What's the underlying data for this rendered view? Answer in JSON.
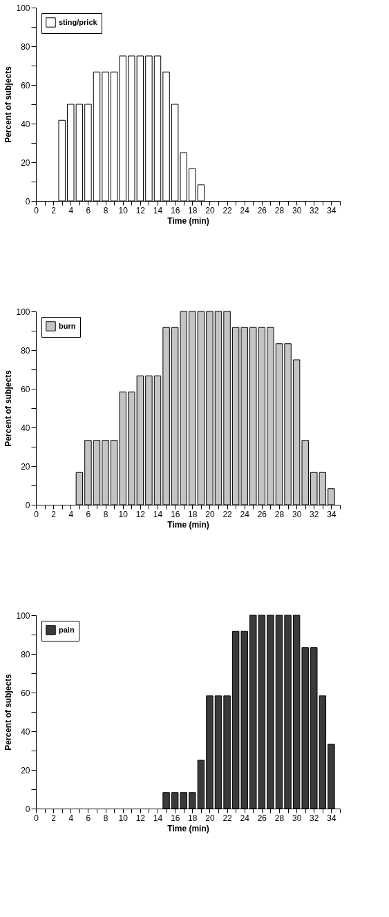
{
  "chart_data": [
    {
      "type": "bar",
      "xlabel": "Time (min)",
      "ylabel": "Percent of subjects",
      "legend": "top left",
      "grid": false,
      "xlim": [
        0,
        35
      ],
      "ylim": [
        0,
        100
      ],
      "xticks": [
        0,
        {
          "value": 1,
          "label": null
        },
        2,
        {
          "value": 3,
          "label": null
        },
        4,
        {
          "value": 5,
          "label": null
        },
        6,
        {
          "value": 7,
          "label": null
        },
        8,
        {
          "value": 9,
          "label": null
        },
        10,
        {
          "value": 11,
          "label": null
        },
        12,
        {
          "value": 13,
          "label": null
        },
        14,
        {
          "value": 15,
          "label": null
        },
        16,
        {
          "value": 17,
          "label": null
        },
        18,
        {
          "value": 19,
          "label": null
        },
        20,
        {
          "value": 21,
          "label": null
        },
        22,
        {
          "value": 23,
          "label": null
        },
        24,
        {
          "value": 25,
          "label": null
        },
        26,
        {
          "value": 27,
          "label": null
        },
        28,
        {
          "value": 29,
          "label": null
        },
        30,
        {
          "value": 31,
          "label": null
        },
        32,
        {
          "value": 33,
          "label": null
        },
        34,
        {
          "value": 35,
          "label": null
        }
      ],
      "yticks": [
        0,
        {
          "value": 10,
          "label": null
        },
        20,
        {
          "value": 30,
          "label": null
        },
        40,
        {
          "value": 50,
          "label": null
        },
        60,
        {
          "value": 70,
          "label": null
        },
        80,
        {
          "value": 90,
          "label": null
        },
        100
      ],
      "x": [
        3,
        4,
        5,
        6,
        7,
        8,
        9,
        10,
        11,
        12,
        13,
        14,
        15,
        16,
        17,
        18,
        19
      ],
      "series": [
        {
          "name": "sting/prick",
          "color": "#ffffff",
          "values": [
            41.7,
            50,
            50,
            50,
            66.7,
            66.7,
            66.7,
            75,
            75,
            75,
            75,
            75,
            66.7,
            50,
            25,
            16.7,
            8.3
          ]
        }
      ]
    },
    {
      "type": "bar",
      "xlabel": "Time (min)",
      "ylabel": "Percent of subjects",
      "legend": "top left",
      "grid": false,
      "xlim": [
        0,
        35
      ],
      "ylim": [
        0,
        100
      ],
      "xticks": [
        0,
        {
          "value": 1,
          "label": null
        },
        2,
        {
          "value": 3,
          "label": null
        },
        4,
        {
          "value": 5,
          "label": null
        },
        6,
        {
          "value": 7,
          "label": null
        },
        8,
        {
          "value": 9,
          "label": null
        },
        10,
        {
          "value": 11,
          "label": null
        },
        12,
        {
          "value": 13,
          "label": null
        },
        14,
        {
          "value": 15,
          "label": null
        },
        16,
        {
          "value": 17,
          "label": null
        },
        18,
        {
          "value": 19,
          "label": null
        },
        20,
        {
          "value": 21,
          "label": null
        },
        22,
        {
          "value": 23,
          "label": null
        },
        24,
        {
          "value": 25,
          "label": null
        },
        26,
        {
          "value": 27,
          "label": null
        },
        28,
        {
          "value": 29,
          "label": null
        },
        30,
        {
          "value": 31,
          "label": null
        },
        32,
        {
          "value": 33,
          "label": null
        },
        34,
        {
          "value": 35,
          "label": null
        }
      ],
      "yticks": [
        0,
        {
          "value": 10,
          "label": null
        },
        20,
        {
          "value": 30,
          "label": null
        },
        40,
        {
          "value": 50,
          "label": null
        },
        60,
        {
          "value": 70,
          "label": null
        },
        80,
        {
          "value": 90,
          "label": null
        },
        100
      ],
      "x": [
        5,
        6,
        7,
        8,
        9,
        10,
        11,
        12,
        13,
        14,
        15,
        16,
        17,
        18,
        19,
        20,
        21,
        22,
        23,
        24,
        25,
        26,
        27,
        28,
        29,
        30,
        31,
        32,
        33,
        34
      ],
      "series": [
        {
          "name": "burn",
          "color": "#c4c4c4",
          "values": [
            16.7,
            33.3,
            33.3,
            33.3,
            33.3,
            58.3,
            58.3,
            66.7,
            66.7,
            66.7,
            91.7,
            91.7,
            100,
            100,
            100,
            100,
            100,
            100,
            91.7,
            91.7,
            91.7,
            91.7,
            91.7,
            83.3,
            83.3,
            75,
            33.3,
            16.7,
            16.7,
            8.3
          ]
        }
      ]
    },
    {
      "type": "bar",
      "xlabel": "Time (min)",
      "ylabel": "Percent of subjects",
      "legend": "top left",
      "grid": false,
      "xlim": [
        0,
        35
      ],
      "ylim": [
        0,
        100
      ],
      "xticks": [
        0,
        {
          "value": 1,
          "label": null
        },
        2,
        {
          "value": 3,
          "label": null
        },
        4,
        {
          "value": 5,
          "label": null
        },
        6,
        {
          "value": 7,
          "label": null
        },
        8,
        {
          "value": 9,
          "label": null
        },
        10,
        {
          "value": 11,
          "label": null
        },
        12,
        {
          "value": 13,
          "label": null
        },
        14,
        {
          "value": 15,
          "label": null
        },
        16,
        {
          "value": 17,
          "label": null
        },
        18,
        {
          "value": 19,
          "label": null
        },
        20,
        {
          "value": 21,
          "label": null
        },
        22,
        {
          "value": 23,
          "label": null
        },
        24,
        {
          "value": 25,
          "label": null
        },
        26,
        {
          "value": 27,
          "label": null
        },
        28,
        {
          "value": 29,
          "label": null
        },
        30,
        {
          "value": 31,
          "label": null
        },
        32,
        {
          "value": 33,
          "label": null
        },
        34,
        {
          "value": 35,
          "label": null
        }
      ],
      "yticks": [
        0,
        {
          "value": 10,
          "label": null
        },
        20,
        {
          "value": 30,
          "label": null
        },
        40,
        {
          "value": 50,
          "label": null
        },
        60,
        {
          "value": 70,
          "label": null
        },
        80,
        {
          "value": 90,
          "label": null
        },
        100
      ],
      "x": [
        15,
        16,
        17,
        18,
        19,
        20,
        21,
        22,
        23,
        24,
        25,
        26,
        27,
        28,
        29,
        30,
        31,
        32,
        33,
        34
      ],
      "series": [
        {
          "name": "pain",
          "color": "#3a3a3a",
          "values": [
            8.3,
            8.3,
            8.3,
            8.3,
            25,
            58.3,
            58.3,
            58.3,
            91.7,
            91.7,
            100,
            100,
            100,
            100,
            100,
            100,
            83.3,
            83.3,
            58.3,
            33.3
          ]
        }
      ]
    }
  ]
}
